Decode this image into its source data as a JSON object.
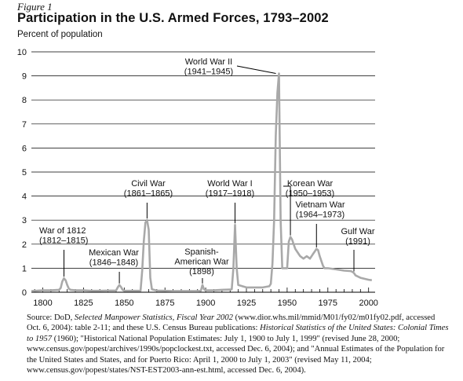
{
  "figure_label": "Figure 1",
  "source_text": "Source: DoD, Selected Manpower Statistics, Fiscal Year 2002 (www.dior.whs.mil/mmid/M01/fy02/m01fy02.pdf, accessed Oct. 6, 2004): table 2-11; and these U.S. Census Bureau publications: Historical Statistics of the United States: Colonial Times to 1957 (1960); \"Historical National Population Estimates: July 1, 1900 to July 1, 1999\" (revised June 28, 2000; www.census.gov/popest/archives/1990s/popclockest.txt, accessed Dec. 6, 2004); and \"Annual Estimates of the Population for the United States and States, and for Puerto Rico: April 1, 2000 to July 1, 2003\" (revised May 11, 2004; www.census.gov/popest/states/NST-EST2003-ann-est.html, accessed Dec. 6, 2004).",
  "colors": {
    "line": "#a9a9a9",
    "axis": "#000000",
    "grid": "#000000",
    "text": "#111111"
  },
  "chart_data": {
    "type": "line",
    "title": "Participation in the U.S. Armed Forces, 1793–2002",
    "ylabel": "Percent of population",
    "xlabel": "",
    "xlim": [
      1793,
      2004
    ],
    "ylim": [
      0,
      10
    ],
    "x_ticks": [
      1800,
      1825,
      1850,
      1875,
      1900,
      1925,
      1950,
      1975,
      2000
    ],
    "y_ticks": [
      0,
      1,
      2,
      3,
      4,
      5,
      6,
      7,
      8,
      9,
      10
    ],
    "grid": "horizontal",
    "series": [
      {
        "x": [
          1793,
          1800,
          1805,
          1810,
          1811,
          1812,
          1813,
          1814,
          1815,
          1816,
          1817,
          1820,
          1825,
          1830,
          1835,
          1840,
          1845,
          1846,
          1847,
          1848,
          1849,
          1850,
          1855,
          1860,
          1861,
          1862,
          1863,
          1864,
          1865,
          1866,
          1867,
          1870,
          1875,
          1880,
          1885,
          1890,
          1895,
          1897,
          1898,
          1899,
          1900,
          1905,
          1910,
          1915,
          1916,
          1917,
          1918,
          1919,
          1920,
          1925,
          1930,
          1935,
          1939,
          1940,
          1941,
          1942,
          1943,
          1944,
          1945,
          1946,
          1947,
          1948,
          1949,
          1950,
          1951,
          1952,
          1953,
          1955,
          1958,
          1960,
          1962,
          1964,
          1966,
          1968,
          1969,
          1970,
          1971,
          1972,
          1973,
          1975,
          1980,
          1985,
          1989,
          1990,
          1991,
          1992,
          1995,
          2000,
          2002
        ],
        "y": [
          0.05,
          0.08,
          0.08,
          0.1,
          0.18,
          0.45,
          0.58,
          0.5,
          0.3,
          0.15,
          0.1,
          0.08,
          0.08,
          0.06,
          0.06,
          0.07,
          0.07,
          0.2,
          0.3,
          0.22,
          0.1,
          0.06,
          0.06,
          0.06,
          0.9,
          2.1,
          2.9,
          3.0,
          2.6,
          0.6,
          0.12,
          0.07,
          0.06,
          0.05,
          0.05,
          0.05,
          0.05,
          0.06,
          0.3,
          0.12,
          0.08,
          0.08,
          0.1,
          0.11,
          0.12,
          1.0,
          2.8,
          1.0,
          0.3,
          0.2,
          0.2,
          0.2,
          0.25,
          0.35,
          1.2,
          3.0,
          6.5,
          8.3,
          9.1,
          3.0,
          1.0,
          1.0,
          1.0,
          1.0,
          2.1,
          2.3,
          2.2,
          1.8,
          1.5,
          1.4,
          1.5,
          1.4,
          1.6,
          1.8,
          1.75,
          1.5,
          1.3,
          1.1,
          1.0,
          1.0,
          0.95,
          0.9,
          0.88,
          0.85,
          0.8,
          0.7,
          0.6,
          0.52,
          0.5
        ]
      }
    ],
    "annotations": [
      {
        "id": "war-1812",
        "lines": [
          "War of 1812",
          "(1812–1815)"
        ],
        "year": 1813,
        "peak": 0.58
      },
      {
        "id": "mexican-war",
        "lines": [
          "Mexican War",
          "(1846–1848)"
        ],
        "year": 1847,
        "peak": 0.3
      },
      {
        "id": "civil-war",
        "lines": [
          "Civil War",
          "(1861–1865)"
        ],
        "year": 1864,
        "peak": 3.0
      },
      {
        "id": "spanish-american-war",
        "lines": [
          "Spanish-",
          "American War",
          "(1898)"
        ],
        "year": 1898,
        "peak": 0.3
      },
      {
        "id": "world-war-1",
        "lines": [
          "World War I",
          "(1917–1918)"
        ],
        "year": 1918,
        "peak": 2.8
      },
      {
        "id": "world-war-2",
        "lines": [
          "World War II",
          "(1941–1945)"
        ],
        "year": 1945,
        "peak": 9.1
      },
      {
        "id": "korean-war",
        "lines": [
          "Korean War",
          "(1950–1953)"
        ],
        "year": 1952,
        "peak": 2.3
      },
      {
        "id": "vietnam-war",
        "lines": [
          "Vietnam War",
          "(1964–1973)"
        ],
        "year": 1968,
        "peak": 1.8
      },
      {
        "id": "gulf-war",
        "lines": [
          "Gulf War",
          "(1991)"
        ],
        "year": 1991,
        "peak": 0.8
      }
    ]
  }
}
